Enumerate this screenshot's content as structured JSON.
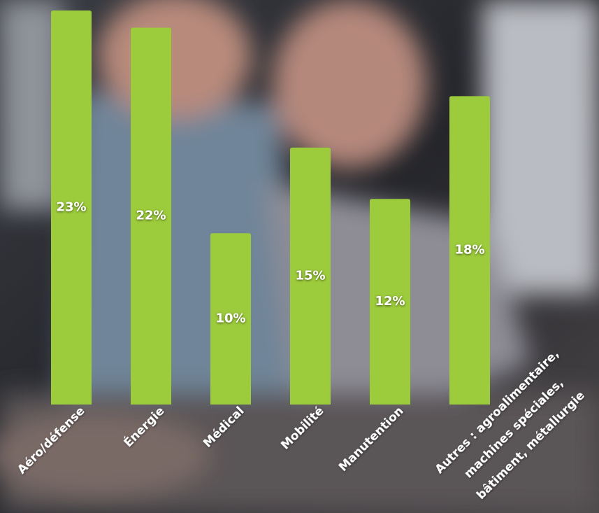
{
  "chart_data": {
    "type": "bar",
    "categories": [
      "Aéro/défense",
      "Énergie",
      "Médical",
      "Mobilité",
      "Manutention",
      "Autres : agroalimentaire,\nmachines spéciales,\nbâtiment, métallurgie"
    ],
    "values": [
      23,
      22,
      10,
      15,
      12,
      18
    ],
    "value_labels": [
      "23%",
      "22%",
      "10%",
      "15%",
      "12%",
      "18%"
    ],
    "color": "#9ccb3b"
  }
}
